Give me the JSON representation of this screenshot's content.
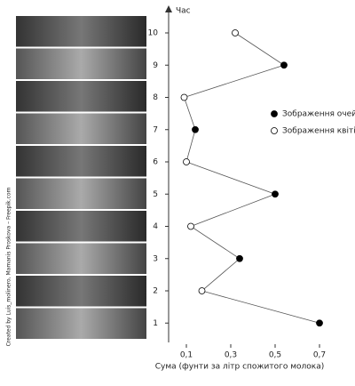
{
  "chart_data": {
    "type": "line",
    "y_label": "Час",
    "x_label": "Сума (фунти за літр спожитого молока)",
    "credit": "Created by Luis_molinero, Mamanis Proskova – Freepik.com",
    "weeks": [
      1,
      2,
      3,
      4,
      5,
      6,
      7,
      8,
      9,
      10
    ],
    "values": [
      0.7,
      0.17,
      0.34,
      0.12,
      0.5,
      0.1,
      0.14,
      0.09,
      0.54,
      0.32
    ],
    "marker_series": [
      0,
      1,
      0,
      1,
      0,
      1,
      0,
      1,
      0,
      1
    ],
    "series": [
      {
        "name": "Зображення очей",
        "color": "#000000"
      },
      {
        "name": "Зображення квітів",
        "color": "#ffffff"
      }
    ],
    "line_color": "#555555",
    "xlim": [
      0.02,
      0.76
    ],
    "ylim": [
      0.4,
      10.8
    ],
    "xticks": [
      {
        "value": 0.1,
        "label": "0,1"
      },
      {
        "value": 0.3,
        "label": "0,3"
      },
      {
        "value": 0.5,
        "label": "0,5"
      },
      {
        "value": 0.7,
        "label": "0,7"
      }
    ],
    "yticks": [
      1,
      2,
      3,
      4,
      5,
      6,
      7,
      8,
      9,
      10
    ]
  }
}
